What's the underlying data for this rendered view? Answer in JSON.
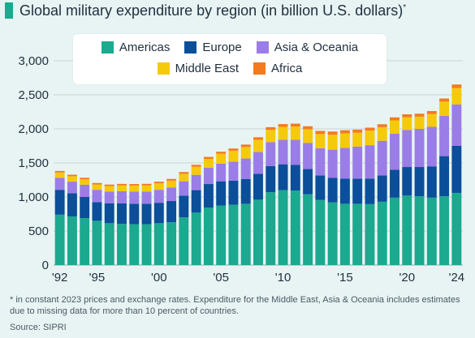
{
  "title": "Global military expenditure by region (in billion U.S. dollars)",
  "title_mark": "*",
  "footnote": "* in constant 2023 prices and exchange rates. Expenditure for the Middle East, Asia & Oceania includes estimates due to missing data for more than 10 percent of countries.",
  "source": "Source: SIPRI",
  "colors": {
    "background": "#e8f4f3",
    "accent": "#1ba98f"
  },
  "chart_data": {
    "type": "bar",
    "stacked": true,
    "title": "Global military expenditure by region (in billion U.S. dollars)",
    "xlabel": "",
    "ylabel": "",
    "ylim": [
      0,
      3000
    ],
    "yticks": [
      0,
      500,
      1000,
      1500,
      2000,
      2500,
      3000
    ],
    "ytick_labels": [
      "0",
      "500",
      "1,000",
      "1,500",
      "2,000",
      "2,500",
      "3,000"
    ],
    "grid": true,
    "legend_placement": "top-center",
    "categories": [
      "1992",
      "1993",
      "1994",
      "1995",
      "1996",
      "1997",
      "1998",
      "1999",
      "2000",
      "2001",
      "2002",
      "2003",
      "2004",
      "2005",
      "2006",
      "2007",
      "2008",
      "2009",
      "2010",
      "2011",
      "2012",
      "2013",
      "2014",
      "2015",
      "2016",
      "2017",
      "2018",
      "2019",
      "2020",
      "2021",
      "2022",
      "2023",
      "2024"
    ],
    "xtick_labels": [
      {
        "category": "1992",
        "label": "'92"
      },
      {
        "category": "1995",
        "label": "'95"
      },
      {
        "category": "2000",
        "label": "'00"
      },
      {
        "category": "2005",
        "label": "'05"
      },
      {
        "category": "2010",
        "label": "'10"
      },
      {
        "category": "2015",
        "label": "'15"
      },
      {
        "category": "2020",
        "label": "'20"
      },
      {
        "category": "2024",
        "label": "'24"
      }
    ],
    "series": [
      {
        "name": "Americas",
        "color": "#1ba98f",
        "values": [
          740,
          715,
          690,
          650,
          615,
          605,
          600,
          600,
          615,
          630,
          700,
          770,
          845,
          875,
          885,
          900,
          960,
          1070,
          1100,
          1095,
          1040,
          955,
          920,
          900,
          900,
          895,
          930,
          990,
          1020,
          1010,
          990,
          1010,
          1060
        ]
      },
      {
        "name": "Europe",
        "color": "#0b4e9a",
        "values": [
          365,
          340,
          310,
          275,
          290,
          300,
          300,
          300,
          300,
          310,
          320,
          330,
          345,
          355,
          355,
          365,
          380,
          385,
          380,
          375,
          370,
          360,
          360,
          370,
          370,
          375,
          385,
          410,
          420,
          430,
          460,
          590,
          690
        ]
      },
      {
        "name": "Asia & Oceania",
        "color": "#9b7de8",
        "values": [
          175,
          170,
          180,
          180,
          175,
          180,
          180,
          180,
          190,
          200,
          210,
          225,
          240,
          260,
          280,
          300,
          320,
          350,
          360,
          370,
          385,
          400,
          415,
          450,
          470,
          490,
          510,
          530,
          545,
          560,
          580,
          590,
          610
        ]
      },
      {
        "name": "Middle East",
        "color": "#f5ca0b",
        "values": [
          80,
          80,
          80,
          78,
          80,
          85,
          88,
          90,
          95,
          100,
          110,
          120,
          130,
          145,
          160,
          170,
          180,
          180,
          190,
          195,
          200,
          210,
          220,
          215,
          205,
          215,
          200,
          195,
          185,
          180,
          190,
          210,
          240
        ]
      },
      {
        "name": "Africa",
        "color": "#f47a20",
        "values": [
          22,
          22,
          22,
          22,
          22,
          22,
          22,
          23,
          24,
          25,
          26,
          27,
          28,
          30,
          32,
          34,
          37,
          40,
          40,
          42,
          44,
          45,
          46,
          45,
          44,
          43,
          43,
          44,
          44,
          43,
          42,
          46,
          52
        ]
      }
    ]
  }
}
